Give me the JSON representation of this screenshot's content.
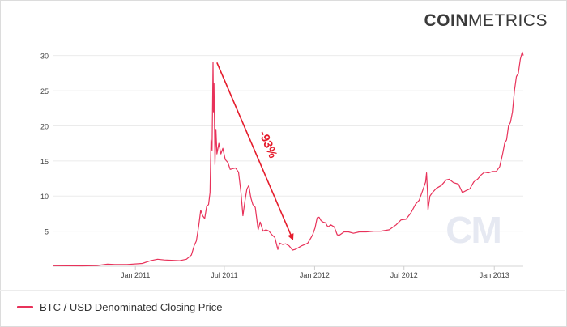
{
  "brand": {
    "part1": "COIN",
    "part2": "METRICS"
  },
  "colors": {
    "series": "#e8325a",
    "arrow": "#e51c2c",
    "grid": "#ebebeb",
    "axis_text": "#444444",
    "watermark": "#e6e9f2"
  },
  "watermark": {
    "text": "CM"
  },
  "annotation": {
    "text": "-93%"
  },
  "chart_data": {
    "type": "line",
    "title": "",
    "xlabel": "",
    "ylabel": "",
    "x_range": [
      "2010-07-18",
      "2013-03-01"
    ],
    "ylim": [
      0,
      31
    ],
    "yticks": [
      5,
      10,
      15,
      20,
      25,
      30
    ],
    "xticks": [
      {
        "date": "2011-01-01",
        "label": "Jan 2011"
      },
      {
        "date": "2011-07-01",
        "label": "Jul 2011"
      },
      {
        "date": "2012-01-01",
        "label": "Jan 2012"
      },
      {
        "date": "2012-07-01",
        "label": "Jul 2012"
      },
      {
        "date": "2013-01-01",
        "label": "Jan 2013"
      }
    ],
    "grid": {
      "horizontal": true,
      "vertical": false
    },
    "legend_position": "bottom-left",
    "series": [
      {
        "name": "BTC / USD Denominated Closing Price",
        "points": [
          [
            "2010-07-18",
            0.08
          ],
          [
            "2010-08-15",
            0.07
          ],
          [
            "2010-09-15",
            0.06
          ],
          [
            "2010-10-15",
            0.1
          ],
          [
            "2010-11-05",
            0.3
          ],
          [
            "2010-11-20",
            0.25
          ],
          [
            "2010-12-15",
            0.25
          ],
          [
            "2011-01-15",
            0.4
          ],
          [
            "2011-02-01",
            0.8
          ],
          [
            "2011-02-15",
            1.0
          ],
          [
            "2011-03-01",
            0.9
          ],
          [
            "2011-03-15",
            0.85
          ],
          [
            "2011-04-01",
            0.8
          ],
          [
            "2011-04-15",
            1.0
          ],
          [
            "2011-04-25",
            1.6
          ],
          [
            "2011-05-01",
            3.0
          ],
          [
            "2011-05-05",
            3.6
          ],
          [
            "2011-05-10",
            5.8
          ],
          [
            "2011-05-14",
            8.0
          ],
          [
            "2011-05-18",
            7.2
          ],
          [
            "2011-05-22",
            6.8
          ],
          [
            "2011-05-26",
            8.5
          ],
          [
            "2011-05-30",
            8.8
          ],
          [
            "2011-06-02",
            10.5
          ],
          [
            "2011-06-04",
            18.0
          ],
          [
            "2011-06-06",
            16.5
          ],
          [
            "2011-06-08",
            29.0
          ],
          [
            "2011-06-09",
            22.0
          ],
          [
            "2011-06-10",
            26.0
          ],
          [
            "2011-06-12",
            14.5
          ],
          [
            "2011-06-14",
            19.5
          ],
          [
            "2011-06-16",
            16.0
          ],
          [
            "2011-06-20",
            17.5
          ],
          [
            "2011-06-24",
            16.0
          ],
          [
            "2011-06-28",
            16.8
          ],
          [
            "2011-07-03",
            15.2
          ],
          [
            "2011-07-08",
            14.8
          ],
          [
            "2011-07-13",
            13.8
          ],
          [
            "2011-07-18",
            13.9
          ],
          [
            "2011-07-24",
            14.0
          ],
          [
            "2011-07-30",
            13.4
          ],
          [
            "2011-08-04",
            10.5
          ],
          [
            "2011-08-08",
            7.2
          ],
          [
            "2011-08-12",
            9.3
          ],
          [
            "2011-08-16",
            11.0
          ],
          [
            "2011-08-20",
            11.5
          ],
          [
            "2011-08-24",
            9.8
          ],
          [
            "2011-08-28",
            8.8
          ],
          [
            "2011-09-02",
            8.4
          ],
          [
            "2011-09-08",
            5.2
          ],
          [
            "2011-09-12",
            6.3
          ],
          [
            "2011-09-18",
            5.0
          ],
          [
            "2011-09-24",
            5.2
          ],
          [
            "2011-09-30",
            5.0
          ],
          [
            "2011-10-06",
            4.5
          ],
          [
            "2011-10-12",
            4.1
          ],
          [
            "2011-10-18",
            2.4
          ],
          [
            "2011-10-22",
            3.3
          ],
          [
            "2011-10-28",
            3.1
          ],
          [
            "2011-11-03",
            3.2
          ],
          [
            "2011-11-10",
            2.9
          ],
          [
            "2011-11-17",
            2.3
          ],
          [
            "2011-11-22",
            2.4
          ],
          [
            "2011-11-28",
            2.6
          ],
          [
            "2011-12-05",
            2.9
          ],
          [
            "2011-12-12",
            3.1
          ],
          [
            "2011-12-18",
            3.3
          ],
          [
            "2011-12-24",
            4.0
          ],
          [
            "2011-12-28",
            4.5
          ],
          [
            "2012-01-02",
            5.5
          ],
          [
            "2012-01-06",
            6.9
          ],
          [
            "2012-01-10",
            7.0
          ],
          [
            "2012-01-14",
            6.5
          ],
          [
            "2012-01-18",
            6.3
          ],
          [
            "2012-01-23",
            6.2
          ],
          [
            "2012-01-28",
            5.6
          ],
          [
            "2012-02-03",
            5.9
          ],
          [
            "2012-02-10",
            5.6
          ],
          [
            "2012-02-16",
            4.5
          ],
          [
            "2012-02-20",
            4.4
          ],
          [
            "2012-03-01",
            4.9
          ],
          [
            "2012-03-10",
            4.9
          ],
          [
            "2012-03-20",
            4.7
          ],
          [
            "2012-04-01",
            4.9
          ],
          [
            "2012-04-15",
            4.9
          ],
          [
            "2012-05-01",
            5.0
          ],
          [
            "2012-05-15",
            5.0
          ],
          [
            "2012-06-01",
            5.2
          ],
          [
            "2012-06-15",
            5.9
          ],
          [
            "2012-06-25",
            6.6
          ],
          [
            "2012-07-05",
            6.7
          ],
          [
            "2012-07-15",
            7.6
          ],
          [
            "2012-07-25",
            8.9
          ],
          [
            "2012-08-01",
            9.4
          ],
          [
            "2012-08-08",
            10.8
          ],
          [
            "2012-08-14",
            12.0
          ],
          [
            "2012-08-16",
            13.3
          ],
          [
            "2012-08-18",
            10.5
          ],
          [
            "2012-08-19",
            8.0
          ],
          [
            "2012-08-23",
            10.0
          ],
          [
            "2012-08-28",
            10.5
          ],
          [
            "2012-09-05",
            11.1
          ],
          [
            "2012-09-15",
            11.5
          ],
          [
            "2012-09-25",
            12.3
          ],
          [
            "2012-10-01",
            12.4
          ],
          [
            "2012-10-10",
            11.9
          ],
          [
            "2012-10-20",
            11.7
          ],
          [
            "2012-10-28",
            10.5
          ],
          [
            "2012-11-05",
            10.8
          ],
          [
            "2012-11-12",
            11.0
          ],
          [
            "2012-11-20",
            12.0
          ],
          [
            "2012-11-28",
            12.4
          ],
          [
            "2012-12-05",
            13.0
          ],
          [
            "2012-12-12",
            13.4
          ],
          [
            "2012-12-20",
            13.3
          ],
          [
            "2012-12-28",
            13.5
          ],
          [
            "2013-01-05",
            13.5
          ],
          [
            "2013-01-12",
            14.2
          ],
          [
            "2013-01-18",
            16.0
          ],
          [
            "2013-01-22",
            17.5
          ],
          [
            "2013-01-26",
            18.0
          ],
          [
            "2013-01-30",
            20.0
          ],
          [
            "2013-02-03",
            20.5
          ],
          [
            "2013-02-07",
            22.0
          ],
          [
            "2013-02-11",
            25.0
          ],
          [
            "2013-02-15",
            27.0
          ],
          [
            "2013-02-19",
            27.5
          ],
          [
            "2013-02-23",
            29.5
          ],
          [
            "2013-02-27",
            30.5
          ],
          [
            "2013-03-01",
            30.0
          ]
        ]
      }
    ],
    "annotations": [
      {
        "type": "arrow",
        "from": [
          "2011-06-16",
          29.0
        ],
        "to": [
          "2011-11-17",
          3.9
        ],
        "label": "-93%"
      }
    ]
  }
}
